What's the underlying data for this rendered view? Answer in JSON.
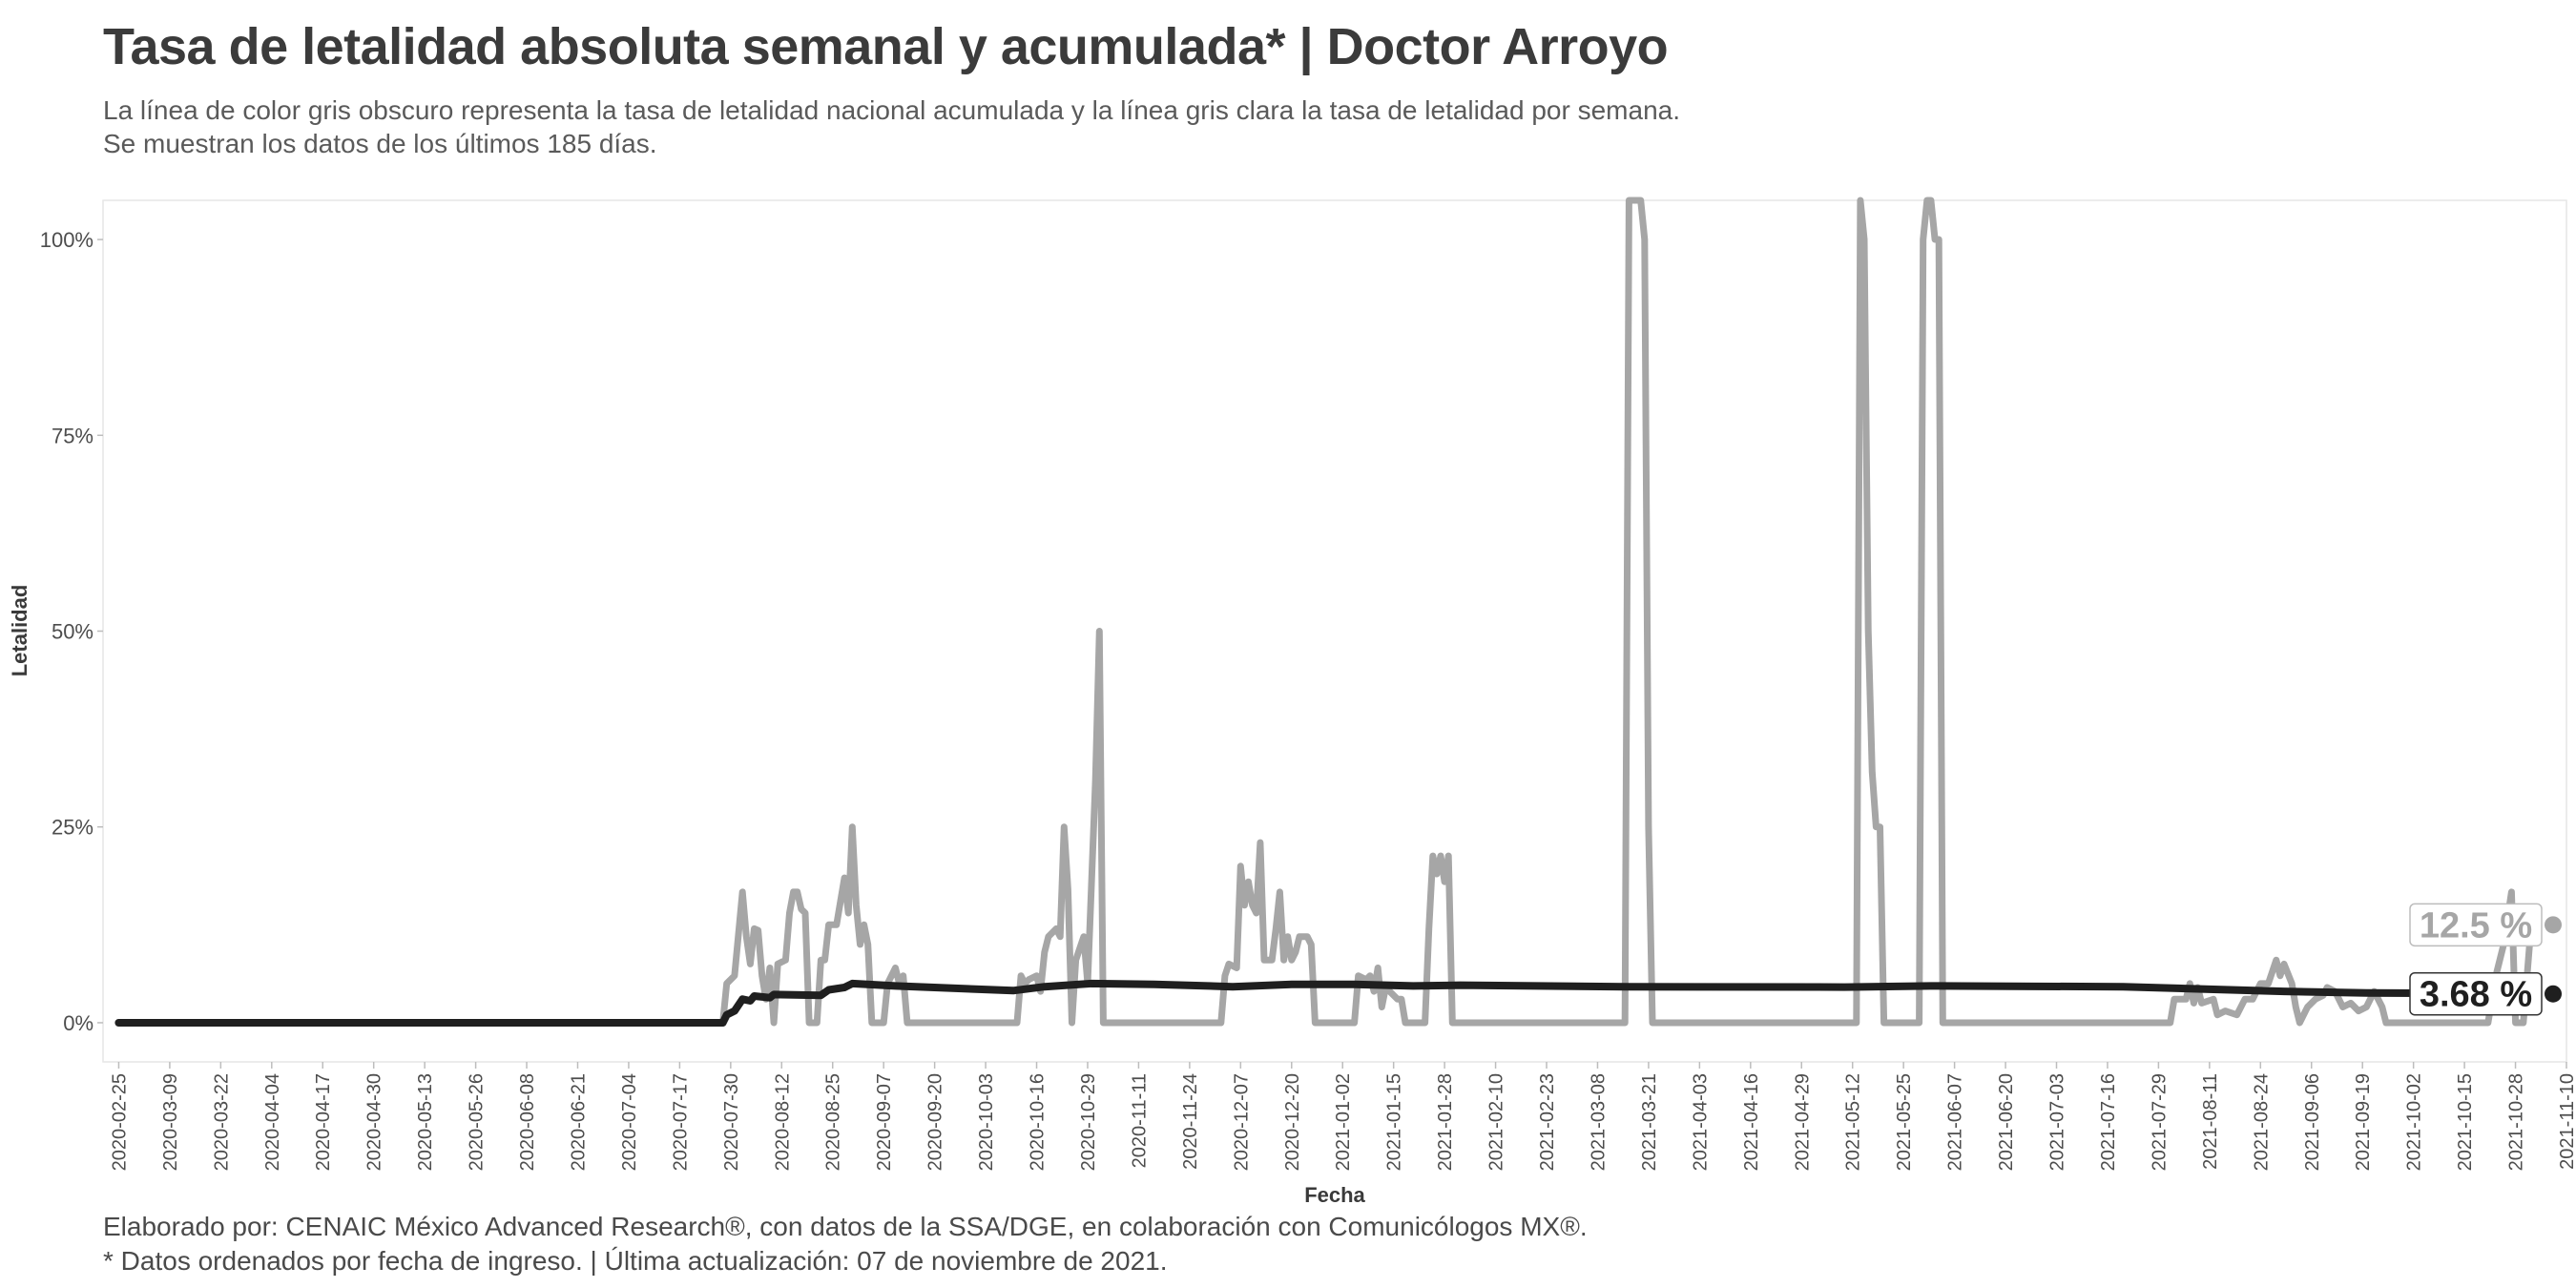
{
  "header": {
    "title": "Tasa de letalidad absoluta semanal y acumulada* | Doctor Arroyo",
    "subtitle_lines": [
      "La línea de color gris obscuro representa la tasa de letalidad nacional acumulada y la línea gris clara la tasa de letalidad por semana.",
      "Se muestran los datos de los últimos 185 días."
    ]
  },
  "caption": {
    "line1": "Elaborado por: CENAIC México Advanced Research®, con datos de la SSA/DGE, en colaboración con Comunicólogos MX®.",
    "line2": "* Datos ordenados por fecha de ingreso. | Última actualización: 07 de noviembre de 2021."
  },
  "colors": {
    "weekly": "#a6a6a6",
    "cumulative": "#1f1f1f",
    "grid": "#e6e6e6",
    "axis_text": "#4d4d4d"
  },
  "chart_data": {
    "type": "line",
    "title": "Tasa de letalidad absoluta semanal y acumulada* | Doctor Arroyo",
    "xlabel": "Fecha",
    "ylabel": "Letalidad",
    "xlim": [
      "2020-02-21",
      "2021-11-10"
    ],
    "ylim": [
      -5,
      105
    ],
    "y_ticks": [
      0,
      25,
      50,
      75,
      100
    ],
    "y_tick_labels": [
      "0%",
      "25%",
      "50%",
      "75%",
      "100%"
    ],
    "x_ticks": [
      "2020-02-25",
      "2020-03-09",
      "2020-03-22",
      "2020-04-04",
      "2020-04-17",
      "2020-04-30",
      "2020-05-13",
      "2020-05-26",
      "2020-06-08",
      "2020-06-21",
      "2020-07-04",
      "2020-07-17",
      "2020-07-30",
      "2020-08-12",
      "2020-08-25",
      "2020-09-07",
      "2020-09-20",
      "2020-10-03",
      "2020-10-16",
      "2020-10-29",
      "2020-11-11",
      "2020-11-24",
      "2020-12-07",
      "2020-12-20",
      "2021-01-02",
      "2021-01-15",
      "2021-01-28",
      "2021-02-10",
      "2021-02-23",
      "2021-03-08",
      "2021-03-21",
      "2021-04-03",
      "2021-04-16",
      "2021-04-29",
      "2021-05-12",
      "2021-05-25",
      "2021-06-07",
      "2021-06-20",
      "2021-07-03",
      "2021-07-16",
      "2021-07-29",
      "2021-08-11",
      "2021-08-24",
      "2021-09-06",
      "2021-09-19",
      "2021-10-02",
      "2021-10-15",
      "2021-10-28",
      "2021-11-10"
    ],
    "grid": false,
    "end_labels": [
      {
        "series": "weekly",
        "text": "12.5 %",
        "value": 12.5
      },
      {
        "series": "cumulative",
        "text": "3.68 %",
        "value": 3.68
      }
    ],
    "series": [
      {
        "key": "weekly",
        "points": [
          [
            "2020-02-25",
            0
          ],
          [
            "2020-07-28",
            0
          ],
          [
            "2020-07-29",
            5
          ],
          [
            "2020-07-31",
            6
          ],
          [
            "2020-08-02",
            16.7
          ],
          [
            "2020-08-03",
            11
          ],
          [
            "2020-08-04",
            7.5
          ],
          [
            "2020-08-05",
            12
          ],
          [
            "2020-08-06",
            11.8
          ],
          [
            "2020-08-07",
            6
          ],
          [
            "2020-08-08",
            3
          ],
          [
            "2020-08-09",
            7
          ],
          [
            "2020-08-10",
            0
          ],
          [
            "2020-08-11",
            7.5
          ],
          [
            "2020-08-13",
            8
          ],
          [
            "2020-08-14",
            14
          ],
          [
            "2020-08-15",
            16.7
          ],
          [
            "2020-08-16",
            16.7
          ],
          [
            "2020-08-17",
            14.5
          ],
          [
            "2020-08-18",
            14
          ],
          [
            "2020-08-19",
            0
          ],
          [
            "2020-08-21",
            0
          ],
          [
            "2020-08-22",
            8
          ],
          [
            "2020-08-23",
            8
          ],
          [
            "2020-08-24",
            12.5
          ],
          [
            "2020-08-26",
            12.5
          ],
          [
            "2020-08-28",
            18.5
          ],
          [
            "2020-08-29",
            14
          ],
          [
            "2020-08-30",
            25
          ],
          [
            "2020-08-31",
            15
          ],
          [
            "2020-09-01",
            10
          ],
          [
            "2020-09-02",
            12.5
          ],
          [
            "2020-09-03",
            10
          ],
          [
            "2020-09-04",
            0
          ],
          [
            "2020-09-07",
            0
          ],
          [
            "2020-09-08",
            5
          ],
          [
            "2020-09-10",
            7
          ],
          [
            "2020-09-11",
            5
          ],
          [
            "2020-09-12",
            6
          ],
          [
            "2020-09-13",
            0
          ],
          [
            "2020-10-11",
            0
          ],
          [
            "2020-10-12",
            6
          ],
          [
            "2020-10-13",
            5
          ],
          [
            "2020-10-14",
            5.5
          ],
          [
            "2020-10-16",
            6
          ],
          [
            "2020-10-17",
            4
          ],
          [
            "2020-10-18",
            9
          ],
          [
            "2020-10-19",
            11
          ],
          [
            "2020-10-21",
            12
          ],
          [
            "2020-10-22",
            11
          ],
          [
            "2020-10-23",
            25
          ],
          [
            "2020-10-24",
            17
          ],
          [
            "2020-10-25",
            0
          ],
          [
            "2020-10-26",
            8
          ],
          [
            "2020-10-28",
            11
          ],
          [
            "2020-10-29",
            5
          ],
          [
            "2020-10-31",
            31
          ],
          [
            "2020-11-01",
            50
          ],
          [
            "2020-11-02",
            0
          ],
          [
            "2020-12-02",
            0
          ],
          [
            "2020-12-03",
            6
          ],
          [
            "2020-12-04",
            7.5
          ],
          [
            "2020-12-06",
            7
          ],
          [
            "2020-12-07",
            20
          ],
          [
            "2020-12-08",
            15
          ],
          [
            "2020-12-09",
            18
          ],
          [
            "2020-12-10",
            15
          ],
          [
            "2020-12-11",
            14
          ],
          [
            "2020-12-12",
            23
          ],
          [
            "2020-12-13",
            8
          ],
          [
            "2020-12-15",
            8
          ],
          [
            "2020-12-16",
            12
          ],
          [
            "2020-12-17",
            16.7
          ],
          [
            "2020-12-18",
            8
          ],
          [
            "2020-12-19",
            11
          ],
          [
            "2020-12-20",
            8
          ],
          [
            "2020-12-21",
            9
          ],
          [
            "2020-12-22",
            11
          ],
          [
            "2020-12-24",
            11
          ],
          [
            "2020-12-25",
            10
          ],
          [
            "2020-12-26",
            0
          ],
          [
            "2021-01-05",
            0
          ],
          [
            "2021-01-06",
            6
          ],
          [
            "2021-01-08",
            5.5
          ],
          [
            "2021-01-09",
            6
          ],
          [
            "2021-01-10",
            4
          ],
          [
            "2021-01-11",
            7
          ],
          [
            "2021-01-12",
            2
          ],
          [
            "2021-01-13",
            4.5
          ],
          [
            "2021-01-14",
            4
          ],
          [
            "2021-01-16",
            3
          ],
          [
            "2021-01-17",
            3
          ],
          [
            "2021-01-18",
            0
          ],
          [
            "2021-01-23",
            0
          ],
          [
            "2021-01-24",
            12
          ],
          [
            "2021-01-25",
            21.3
          ],
          [
            "2021-01-26",
            19
          ],
          [
            "2021-01-27",
            21.3
          ],
          [
            "2021-01-28",
            18
          ],
          [
            "2021-01-29",
            21.3
          ],
          [
            "2021-01-30",
            0
          ],
          [
            "2021-03-15",
            0
          ],
          [
            "2021-03-16",
            105
          ],
          [
            "2021-03-19",
            105
          ],
          [
            "2021-03-20",
            100
          ],
          [
            "2021-03-21",
            25
          ],
          [
            "2021-03-22",
            0
          ],
          [
            "2021-05-13",
            0
          ],
          [
            "2021-05-14",
            105
          ],
          [
            "2021-05-15",
            100
          ],
          [
            "2021-05-16",
            50
          ],
          [
            "2021-05-17",
            32
          ],
          [
            "2021-05-18",
            25
          ],
          [
            "2021-05-19",
            25
          ],
          [
            "2021-05-20",
            0
          ],
          [
            "2021-05-29",
            0
          ],
          [
            "2021-05-30",
            100
          ],
          [
            "2021-05-31",
            105
          ],
          [
            "2021-06-01",
            105
          ],
          [
            "2021-06-02",
            100
          ],
          [
            "2021-06-03",
            100
          ],
          [
            "2021-06-04",
            0
          ],
          [
            "2021-08-01",
            0
          ],
          [
            "2021-08-02",
            3
          ],
          [
            "2021-08-05",
            3
          ],
          [
            "2021-08-06",
            5
          ],
          [
            "2021-08-07",
            2.5
          ],
          [
            "2021-08-08",
            4.5
          ],
          [
            "2021-08-09",
            2.5
          ],
          [
            "2021-08-12",
            3
          ],
          [
            "2021-08-13",
            1
          ],
          [
            "2021-08-15",
            1.5
          ],
          [
            "2021-08-18",
            1
          ],
          [
            "2021-08-20",
            3
          ],
          [
            "2021-08-22",
            3
          ],
          [
            "2021-08-24",
            5
          ],
          [
            "2021-08-26",
            5
          ],
          [
            "2021-08-28",
            8
          ],
          [
            "2021-08-29",
            6
          ],
          [
            "2021-08-30",
            7.5
          ],
          [
            "2021-09-01",
            5
          ],
          [
            "2021-09-02",
            2
          ],
          [
            "2021-09-03",
            0
          ],
          [
            "2021-09-05",
            2
          ],
          [
            "2021-09-07",
            3
          ],
          [
            "2021-09-09",
            3.5
          ],
          [
            "2021-09-10",
            4.5
          ],
          [
            "2021-09-12",
            4
          ],
          [
            "2021-09-14",
            2
          ],
          [
            "2021-09-16",
            2.5
          ],
          [
            "2021-09-18",
            1.5
          ],
          [
            "2021-09-20",
            2
          ],
          [
            "2021-09-22",
            4
          ],
          [
            "2021-09-24",
            2
          ],
          [
            "2021-09-25",
            0
          ],
          [
            "2021-10-21",
            0
          ],
          [
            "2021-10-23",
            6
          ],
          [
            "2021-10-25",
            10
          ],
          [
            "2021-10-27",
            16.7
          ],
          [
            "2021-10-28",
            0
          ],
          [
            "2021-10-30",
            0
          ],
          [
            "2021-11-01",
            12.5
          ]
        ]
      },
      {
        "key": "cumulative",
        "points": [
          [
            "2020-02-25",
            0
          ],
          [
            "2020-07-28",
            0
          ],
          [
            "2020-07-29",
            1
          ],
          [
            "2020-07-31",
            1.5
          ],
          [
            "2020-08-02",
            3
          ],
          [
            "2020-08-04",
            2.8
          ],
          [
            "2020-08-05",
            3.4
          ],
          [
            "2020-08-09",
            3.2
          ],
          [
            "2020-08-10",
            3.6
          ],
          [
            "2020-08-22",
            3.5
          ],
          [
            "2020-08-24",
            4.2
          ],
          [
            "2020-08-28",
            4.5
          ],
          [
            "2020-08-30",
            5
          ],
          [
            "2020-09-10",
            4.7
          ],
          [
            "2020-10-10",
            4.1
          ],
          [
            "2020-10-18",
            4.6
          ],
          [
            "2020-10-30",
            5
          ],
          [
            "2020-11-15",
            4.9
          ],
          [
            "2020-12-05",
            4.6
          ],
          [
            "2020-12-20",
            4.9
          ],
          [
            "2021-01-05",
            4.9
          ],
          [
            "2021-01-20",
            4.7
          ],
          [
            "2021-02-01",
            4.8
          ],
          [
            "2021-03-15",
            4.6
          ],
          [
            "2021-05-10",
            4.55
          ],
          [
            "2021-06-01",
            4.7
          ],
          [
            "2021-07-20",
            4.6
          ],
          [
            "2021-08-10",
            4.3
          ],
          [
            "2021-08-30",
            4.0
          ],
          [
            "2021-09-20",
            3.8
          ],
          [
            "2021-10-15",
            3.75
          ],
          [
            "2021-11-01",
            3.68
          ]
        ]
      }
    ]
  }
}
